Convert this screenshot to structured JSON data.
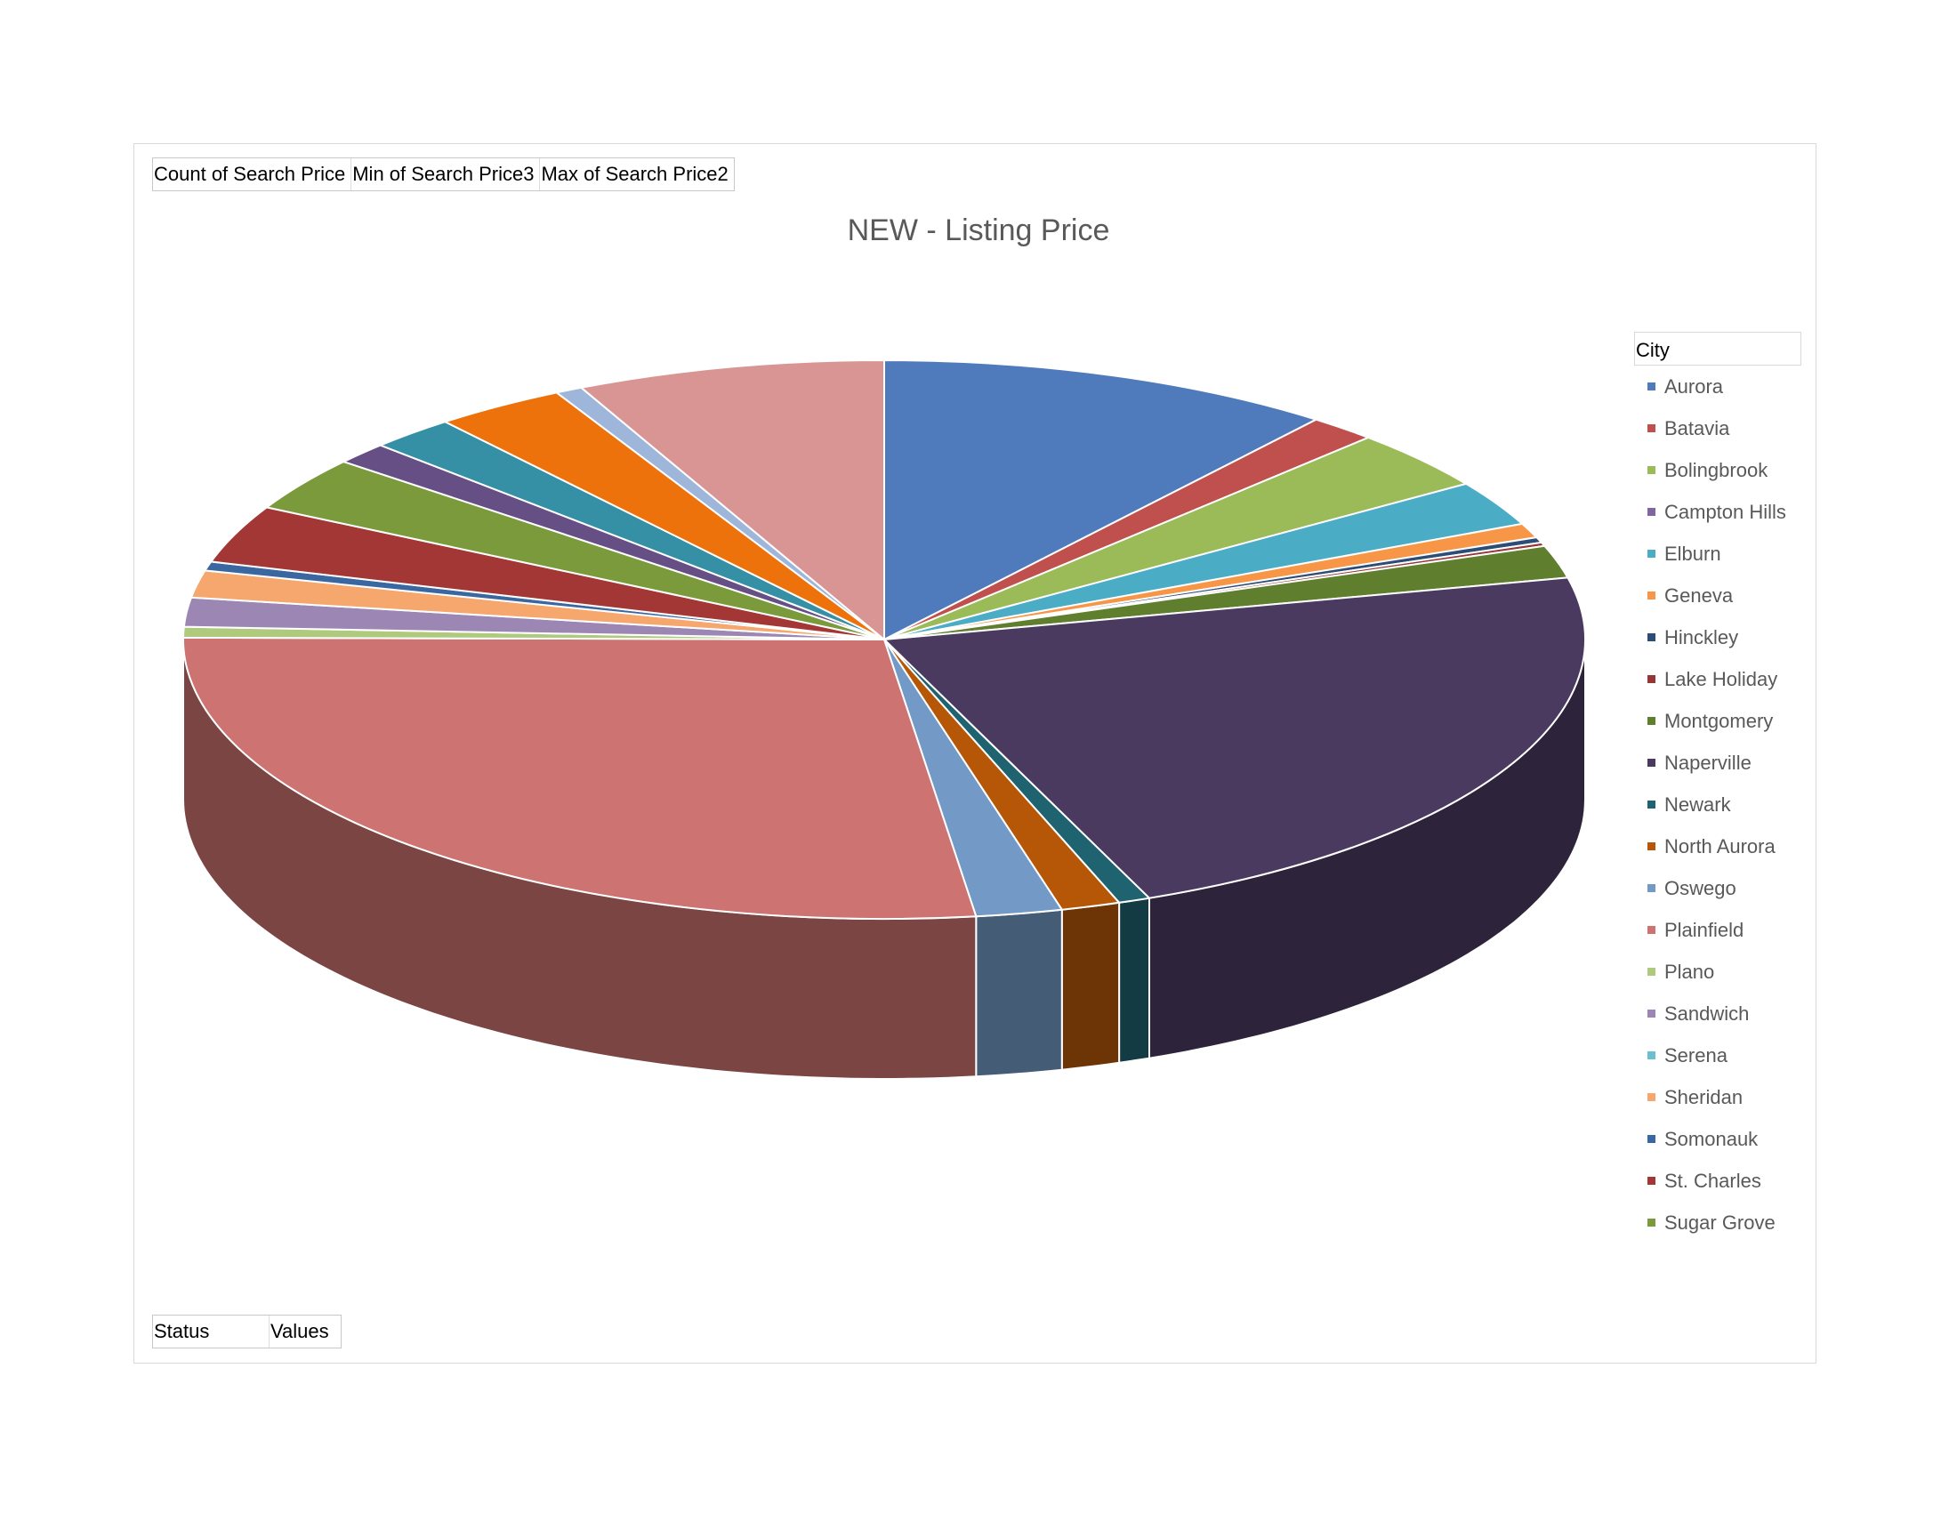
{
  "field_buttons_top": [
    "Count of Search Price",
    "Min of Search Price3",
    "Max of Search Price2"
  ],
  "field_buttons_bottom": [
    "Status",
    "Values"
  ],
  "chart_data": {
    "type": "pie",
    "title": "NEW - Listing Price",
    "legend_title": "City",
    "legend_position": "right",
    "categories": [
      "Aurora",
      "Batavia",
      "Bolingbrook",
      "Campton Hills",
      "Elburn",
      "Geneva",
      "Hinckley",
      "Lake Holiday",
      "Montgomery",
      "Naperville",
      "Newark",
      "North Aurora",
      "Oswego",
      "Plainfield",
      "Plano",
      "Sandwich",
      "Serena",
      "Sheridan",
      "Somonauk",
      "St. Charles",
      "Sugar Grove"
    ],
    "colors": [
      "#4f7bbd",
      "#c0504d",
      "#9bbb59",
      "#7f66a0",
      "#4bacc6",
      "#f79646",
      "#2c4d75",
      "#953735",
      "#5f7f2e",
      "#4b3a60",
      "#1f6270",
      "#b65708",
      "#7399c7",
      "#cd7371",
      "#afca7d",
      "#9c87b4",
      "#6fbdd1",
      "#f6a76d",
      "#3a67a0",
      "#a33735",
      "#7a9a3c"
    ],
    "series": [
      {
        "points": [
          {
            "label": "Aurora",
            "value": 10.1,
            "color": "#4f7bbd"
          },
          {
            "label": "Batavia",
            "value": 1.5,
            "color": "#c0504d"
          },
          {
            "label": "Bolingbrook",
            "value": 3.3,
            "color": "#9bbb59"
          },
          {
            "label": "Elburn",
            "value": 2.5,
            "color": "#4bacc6"
          },
          {
            "label": "Geneva",
            "value": 0.8,
            "color": "#f79646"
          },
          {
            "label": "Hinckley",
            "value": 0.3,
            "color": "#2c4d75"
          },
          {
            "label": "Lake Holiday",
            "value": 0.2,
            "color": "#953735"
          },
          {
            "label": "Montgomery",
            "value": 1.8,
            "color": "#5f7f2e"
          },
          {
            "label": "Naperville",
            "value": 21.4,
            "color": "#4b3a60"
          },
          {
            "label": "Newark",
            "value": 0.7,
            "color": "#1f6270"
          },
          {
            "label": "North Aurora",
            "value": 1.3,
            "color": "#b65708"
          },
          {
            "label": "Oswego",
            "value": 1.9,
            "color": "#7399c7"
          },
          {
            "label": "Plainfield",
            "value": 26.0,
            "color": "#cd7371"
          },
          {
            "label": "Plano",
            "value": 0.6,
            "color": "#afca7d"
          },
          {
            "label": "Sandwich",
            "value": 1.6,
            "color": "#9c87b4"
          },
          {
            "label": "Sheridan",
            "value": 1.5,
            "color": "#f6a76d"
          },
          {
            "label": "Somonauk",
            "value": 0.5,
            "color": "#3a67a0"
          },
          {
            "label": "St. Charles",
            "value": 3.2,
            "color": "#a33735"
          },
          {
            "label": "Sugar Grove",
            "value": 3.0,
            "color": "#7a9a3c"
          },
          {
            "label": "",
            "value": 1.2,
            "color": "#664f85"
          },
          {
            "label": "",
            "value": 1.9,
            "color": "#3590a5"
          },
          {
            "label": "",
            "value": 2.9,
            "color": "#ee720b"
          },
          {
            "label": "",
            "value": 0.6,
            "color": "#9fb6db"
          },
          {
            "label": "",
            "value": 6.8,
            "color": "#d99594"
          }
        ]
      }
    ]
  }
}
